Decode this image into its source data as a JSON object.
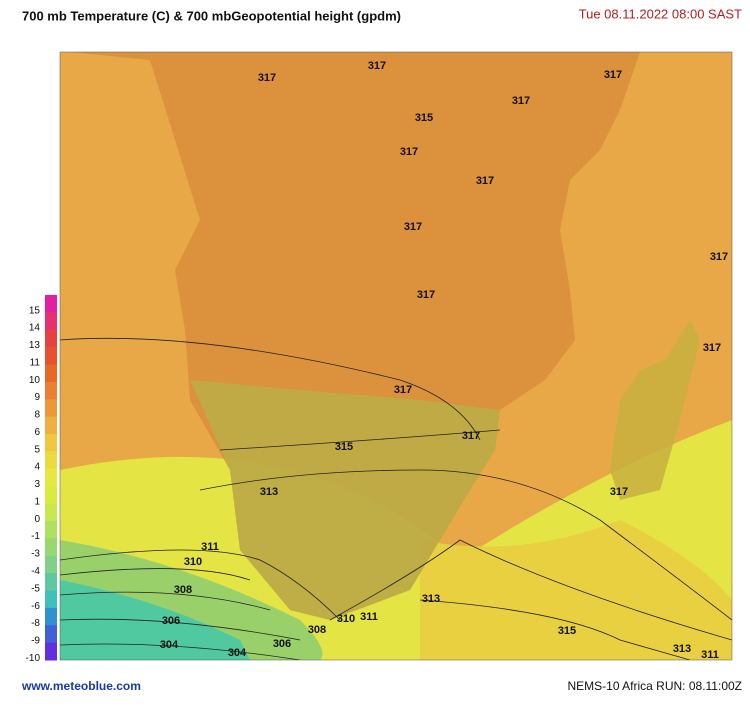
{
  "header": {
    "title": "700 mb Temperature (C)  & 700 mbGeopotential height (gpdm)",
    "date": "Tue 08.11.2022  08:00 SAST"
  },
  "legend": {
    "labels": [
      "15",
      "14",
      "13",
      "11",
      "10",
      "9",
      "8",
      "6",
      "5",
      "4",
      "3",
      "1",
      "0",
      "-1",
      "-3",
      "-4",
      "-5",
      "-6",
      "-8",
      "-9",
      "-10"
    ],
    "colors": [
      "#e020a0",
      "#e83070",
      "#e84040",
      "#e85030",
      "#e86828",
      "#ea8030",
      "#ec9838",
      "#eeb040",
      "#f0c840",
      "#eadc40",
      "#e6e840",
      "#d8ec40",
      "#c8e850",
      "#b0e060",
      "#98d870",
      "#80d088",
      "#60c8a0",
      "#40c0b8",
      "#3090d0",
      "#4060d8",
      "#6030e0"
    ]
  },
  "map": {
    "contour_labels": [
      "317",
      "317",
      "317",
      "317",
      "315",
      "317",
      "317",
      "317",
      "317",
      "317",
      "317",
      "317",
      "317",
      "315",
      "317",
      "313",
      "311",
      "310",
      "308",
      "306",
      "304",
      "304",
      "306",
      "308",
      "310",
      "311",
      "313",
      "315",
      "313",
      "311"
    ]
  },
  "footer": {
    "site": "www.meteoblue.com",
    "run": "NEMS-10 Africa   RUN: 08.11:00Z"
  }
}
